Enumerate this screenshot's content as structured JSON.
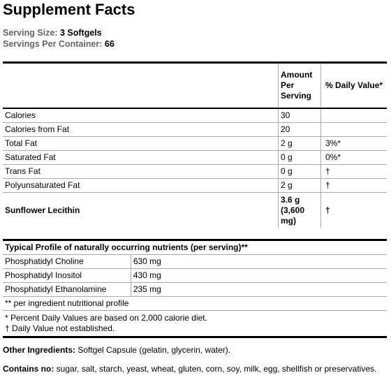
{
  "title": "Supplement Facts",
  "serving": [
    {
      "label": "Serving Size:",
      "value": "3 Softgels"
    },
    {
      "label": "Servings Per Container:",
      "value": "66"
    }
  ],
  "table": {
    "header": {
      "amount": "Amount Per Serving",
      "daily_value": "% Daily Value*"
    },
    "rows": [
      {
        "name": "Calories",
        "amount": "30"
      },
      {
        "name": "Calories from Fat",
        "amount": "20"
      },
      {
        "name": "Total Fat",
        "amount": "2 g",
        "daily_value": "3%*"
      },
      {
        "name": "Saturated Fat",
        "amount": "0 g",
        "daily_value": "0%*"
      },
      {
        "name": "Trans Fat",
        "amount": "0 g",
        "daily_value": "†"
      },
      {
        "name": "Polyunsaturated Fat",
        "amount": "2 g",
        "daily_value": "†"
      },
      {
        "name": "Sunflower Lecithin",
        "amount": "3.6 g (3,600 mg)",
        "daily_value": "†",
        "bold": true
      }
    ]
  },
  "profile": {
    "title": "Typical Profile of naturally occurring nutrients (per serving)**",
    "rows": [
      {
        "name": "Phosphatidyl Choline",
        "amount": "630 mg"
      },
      {
        "name": "Phosphatidyl Inositol",
        "amount": "430 mg"
      },
      {
        "name": "Phosphatidyl Ethanolamine",
        "amount": "235 mg"
      }
    ],
    "note": "** per ingredient nutritional profile"
  },
  "footnotes": [
    "* Percent Daily Values are based on 2,000 calorie diet.",
    "† Daily Value not established."
  ],
  "other_ingredients": {
    "label": "Other Ingredients:",
    "text": "Softgel Capsule (gelatin, glycerin, water)."
  },
  "contains_no": {
    "label": "Contains no:",
    "text": "sugar, salt, starch, yeast, wheat, gluten, corn, soy, milk, egg, shellfish or preservatives."
  }
}
